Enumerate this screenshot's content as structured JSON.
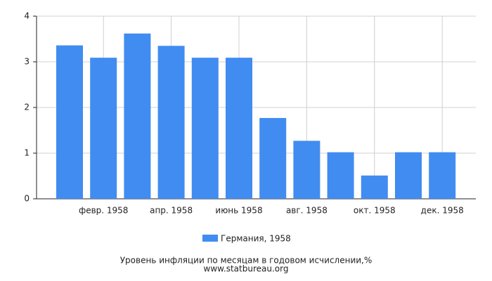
{
  "chart_data": {
    "type": "bar",
    "title": "Уровень инфляции по месяцам в годовом исчислении,%",
    "source": "www.statbureau.org",
    "categories": [
      null,
      "февр. 1958",
      null,
      "апр. 1958",
      null,
      "июнь 1958",
      null,
      "авг. 1958",
      null,
      "окт. 1958",
      null,
      "дек. 1958"
    ],
    "series": [
      {
        "name": "Германия, 1958",
        "color": "#418cf0",
        "values": [
          3.36,
          3.09,
          3.62,
          3.35,
          3.09,
          3.09,
          1.77,
          1.27,
          1.02,
          0.51,
          1.02,
          1.02
        ]
      }
    ],
    "ylim": [
      0,
      4
    ],
    "yticks": [
      0,
      1,
      2,
      3,
      4
    ],
    "grid": true
  }
}
